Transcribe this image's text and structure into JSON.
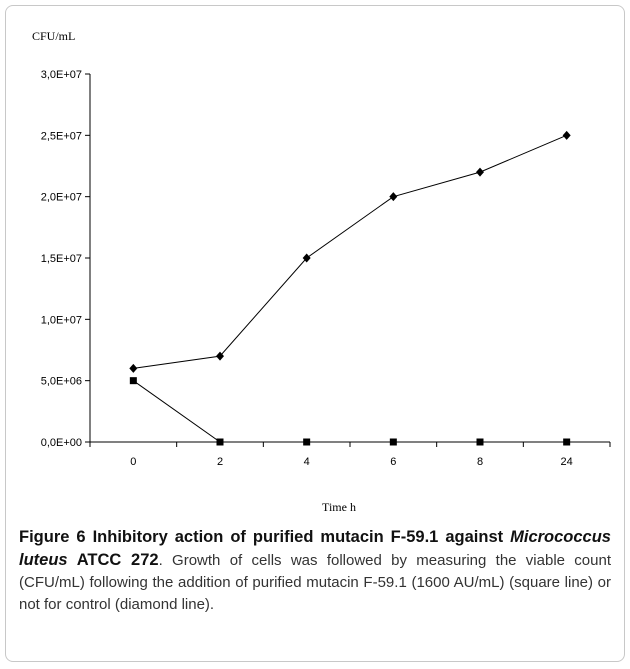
{
  "chart_data": {
    "type": "line",
    "ylabel": "CFU/mL",
    "xlabel": "Time h",
    "categories": [
      "0",
      "2",
      "4",
      "6",
      "8",
      "24"
    ],
    "ylim": [
      0,
      30000000
    ],
    "yticks": [
      {
        "value": 30000000,
        "label": "3,0E+07"
      },
      {
        "value": 25000000,
        "label": "2,5E+07"
      },
      {
        "value": 20000000,
        "label": "2,0E+07"
      },
      {
        "value": 15000000,
        "label": "1,5E+07"
      },
      {
        "value": 10000000,
        "label": "1,0E+07"
      },
      {
        "value": 5000000,
        "label": "5,0E+06"
      },
      {
        "value": 0,
        "label": "0,0E+00"
      }
    ],
    "series": [
      {
        "marker": "diamond",
        "values": [
          6000000,
          7000000,
          15000000,
          20000000,
          22000000,
          25000000
        ]
      },
      {
        "marker": "square",
        "values": [
          5000000,
          0,
          0,
          0,
          0,
          0
        ]
      }
    ],
    "grid": false,
    "color": "#000000"
  },
  "caption": {
    "figure_label": "Figure 6 Inhibitory action of purified mutacin F-59.1 against",
    "organism": "Micrococcus luteus",
    "strain": "ATCC 272",
    "body": ". Growth of cells was followed by measuring the viable count (CFU/mL) following the addition of purified mutacin F-59.1 (1600 AU/mL) (square line) or not for control (diamond line)."
  }
}
